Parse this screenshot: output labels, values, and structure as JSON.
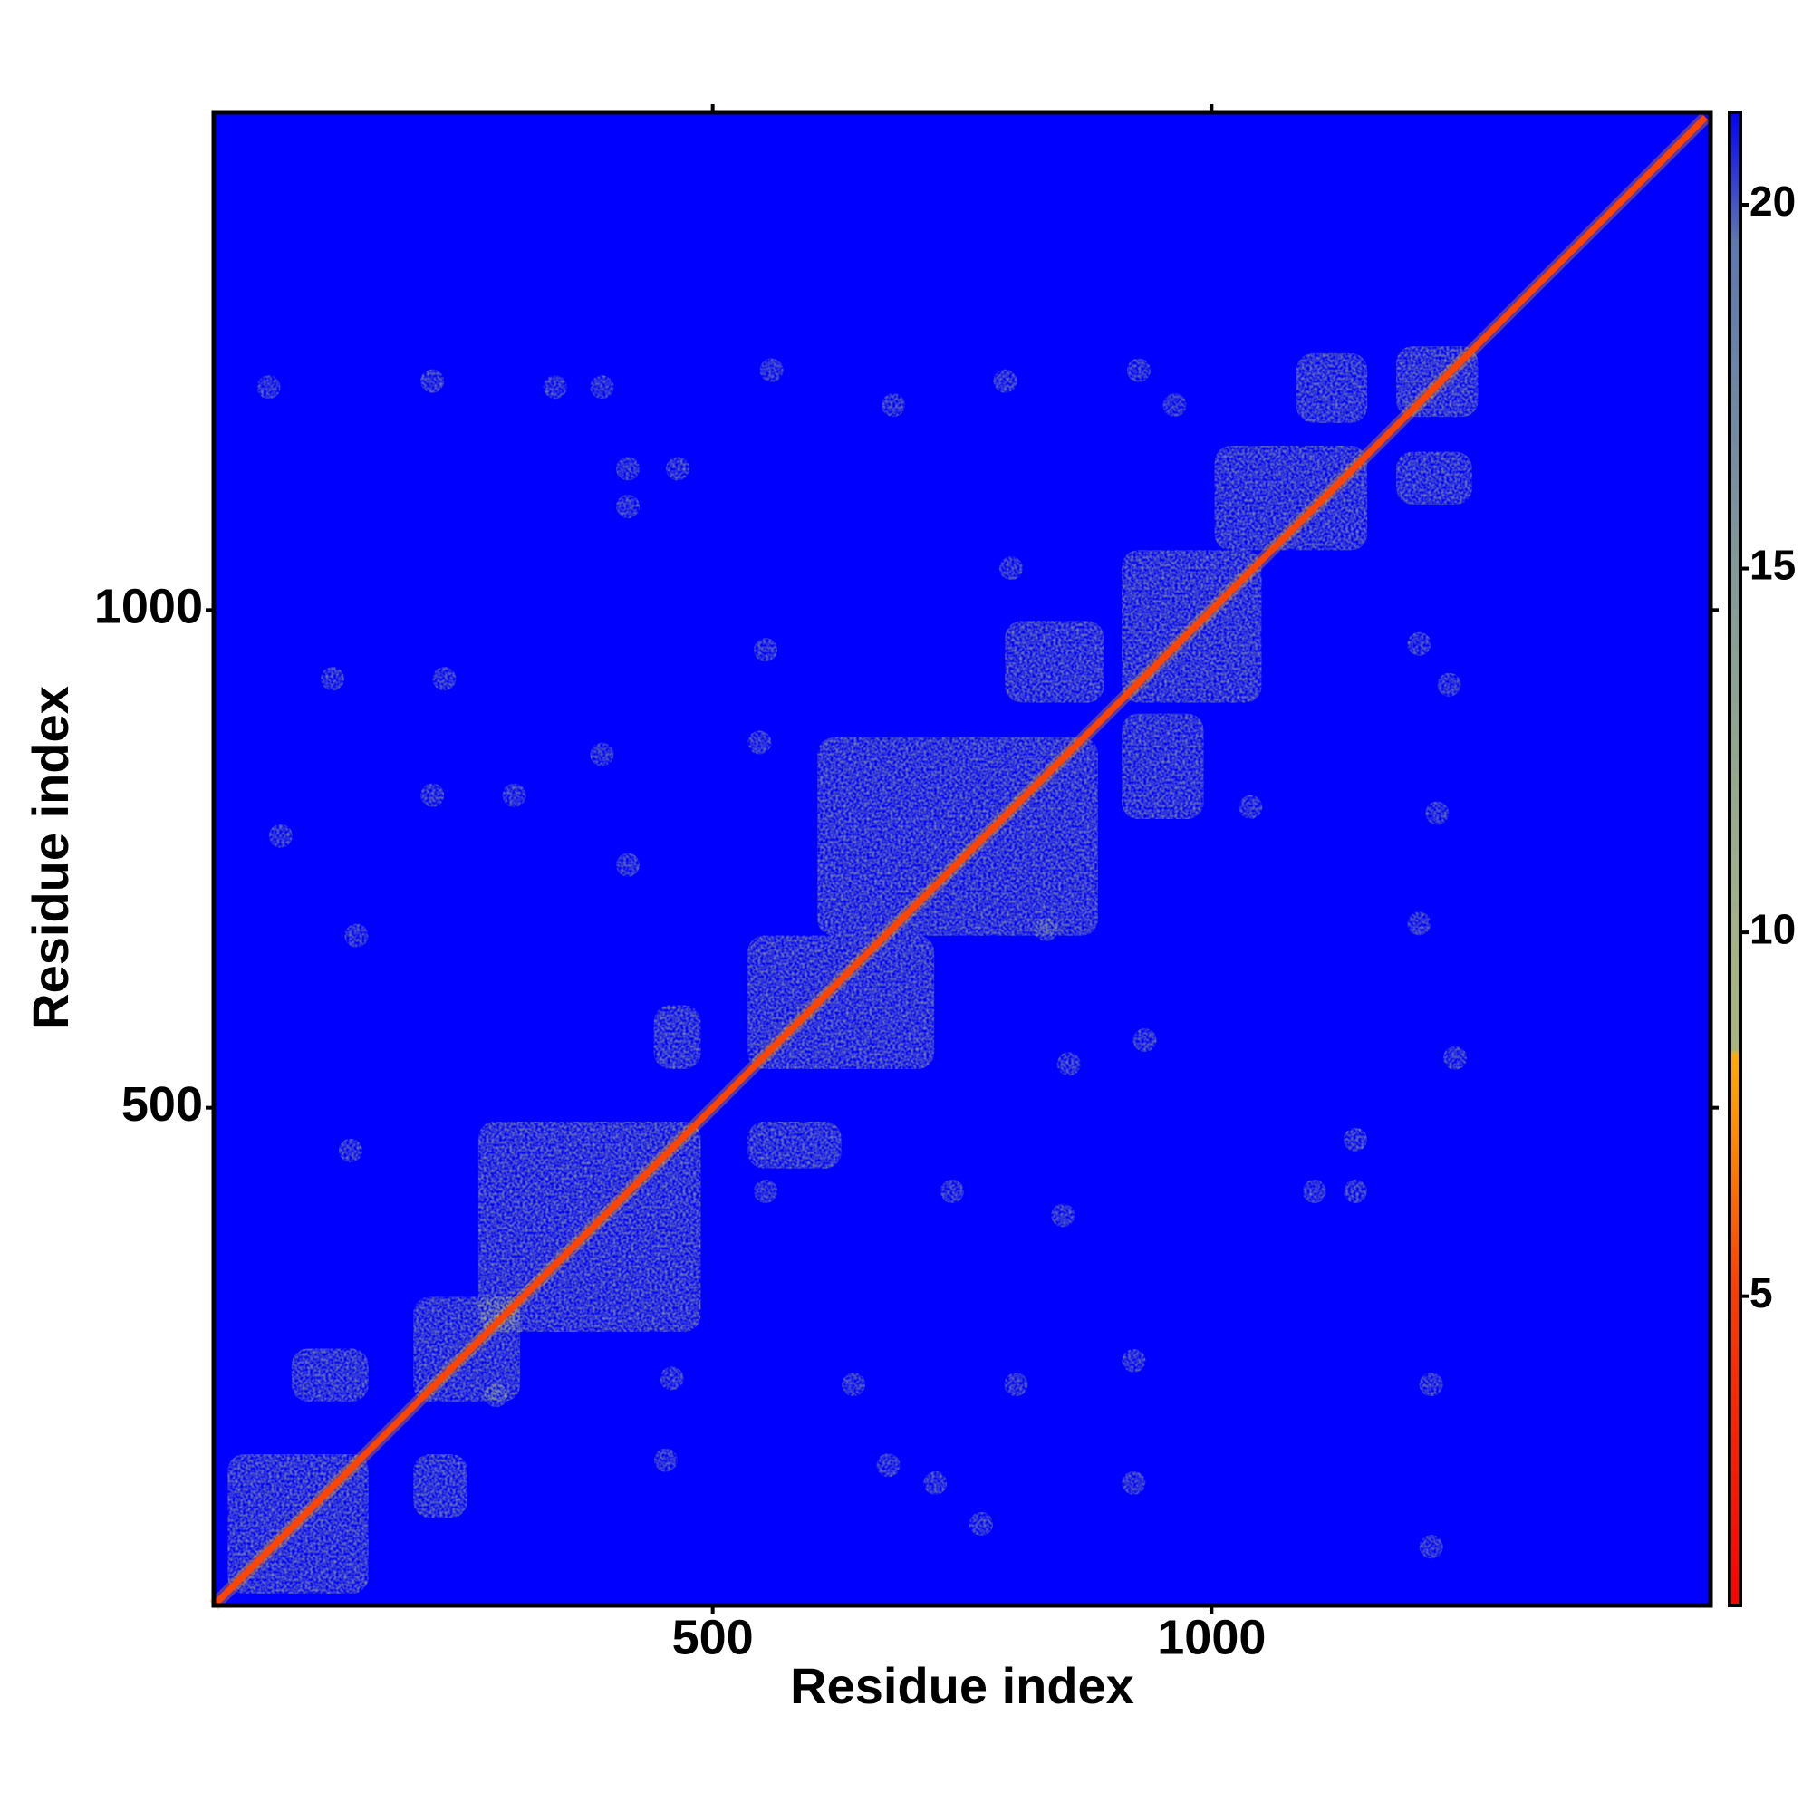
{
  "chart_data": {
    "type": "heatmap",
    "x_label": "Residue index",
    "y_label": "Residue index",
    "xlim": [
      0,
      1500
    ],
    "ylim": [
      0,
      1500
    ],
    "xticks": [
      500,
      1000
    ],
    "yticks": [
      500,
      1000
    ],
    "clim": [
      0.75,
      21.27
    ],
    "cticks": [
      5,
      10,
      15,
      20
    ],
    "colorscale": [
      [
        0.75,
        "#ff0000"
      ],
      [
        5,
        "#ff3a00"
      ],
      [
        7.5,
        "#ff9400"
      ],
      [
        8.3,
        "#ffaa00"
      ],
      [
        8.4,
        "#a9b57a"
      ],
      [
        10,
        "#a3b285"
      ],
      [
        15,
        "#819a99"
      ],
      [
        19.5,
        "#5a78b0"
      ],
      [
        21.27,
        "#0000ff"
      ]
    ],
    "background_value": 21.27,
    "diagonal": {
      "x": [
        0,
        250,
        500,
        750,
        1000,
        1250,
        1495
      ],
      "values": [
        2,
        2,
        2,
        2,
        2,
        2,
        2
      ]
    },
    "regions": [
      {
        "x": [
          14,
          155
        ],
        "y": [
          12,
          152
        ],
        "value": 11
      },
      {
        "x": [
          200,
          254
        ],
        "y": [
          88,
          152
        ],
        "value": 11.5
      },
      {
        "x": [
          78,
          155
        ],
        "y": [
          205,
          258
        ],
        "value": 11.5
      },
      {
        "x": [
          200,
          307
        ],
        "y": [
          205,
          310
        ],
        "value": 11
      },
      {
        "x": [
          265,
          488
        ],
        "y": [
          275,
          486
        ],
        "value": 10.5
      },
      {
        "x": [
          535,
          629
        ],
        "y": [
          439,
          486
        ],
        "value": 11.5
      },
      {
        "x": [
          441,
          488
        ],
        "y": [
          539,
          603
        ],
        "value": 11.5
      },
      {
        "x": [
          535,
          722
        ],
        "y": [
          539,
          673
        ],
        "value": 10.5
      },
      {
        "x": [
          605,
          886
        ],
        "y": [
          673,
          872
        ],
        "value": 10.5
      },
      {
        "x": [
          793,
          892
        ],
        "y": [
          907,
          989
        ],
        "value": 11
      },
      {
        "x": [
          910,
          1050
        ],
        "y": [
          907,
          1060
        ],
        "value": 10.5
      },
      {
        "x": [
          910,
          992
        ],
        "y": [
          790,
          896
        ],
        "value": 11
      },
      {
        "x": [
          1003,
          1156
        ],
        "y": [
          1060,
          1165
        ],
        "value": 11
      },
      {
        "x": [
          1085,
          1156
        ],
        "y": [
          1188,
          1258
        ],
        "value": 11.5
      },
      {
        "x": [
          1185,
          1267
        ],
        "y": [
          1194,
          1265
        ],
        "value": 10.5
      },
      {
        "x": [
          1185,
          1261
        ],
        "y": [
          1106,
          1159
        ],
        "value": 11.5
      }
    ],
    "spots": {
      "x": [
        219,
        559,
        465,
        415,
        415,
        342,
        389,
        681,
        793,
        927,
        963,
        799,
        553,
        547,
        389,
        219,
        301,
        67,
        143,
        415,
        1039,
        1226,
        1208,
        834,
        857,
        1244,
        1144,
        1103,
        1144,
        851,
        740,
        553,
        137,
        459,
        283,
        641,
        804,
        1220,
        922,
        676,
        723,
        769,
        453,
        1220,
        55,
        119,
        231,
        922,
        1238,
        1208,
        933
      ],
      "y": [
        1230,
        1241,
        1142,
        1142,
        1104,
        1224,
        1224,
        1206,
        1230,
        1241,
        1206,
        1042,
        960,
        867,
        855,
        814,
        814,
        773,
        673,
        744,
        802,
        796,
        685,
        679,
        544,
        550,
        468,
        416,
        416,
        392,
        416,
        416,
        457,
        228,
        211,
        222,
        222,
        222,
        123,
        141,
        123,
        82,
        146,
        59,
        1224,
        931,
        931,
        246,
        925,
        966,
        568
      ],
      "values": [
        12,
        12.5,
        12,
        13,
        13,
        13.5,
        13.5,
        12.5,
        13,
        13,
        13.5,
        13,
        13,
        12.5,
        13,
        13,
        13,
        13,
        12.5,
        13,
        13,
        13.5,
        12,
        13,
        12.5,
        12.5,
        12,
        12.5,
        12.5,
        12.5,
        13,
        13,
        12.5,
        12.5,
        12.5,
        13,
        13,
        12,
        12.5,
        12.5,
        13,
        13,
        12.5,
        13,
        13.5,
        13,
        13,
        13,
        13,
        13,
        13
      ]
    }
  }
}
